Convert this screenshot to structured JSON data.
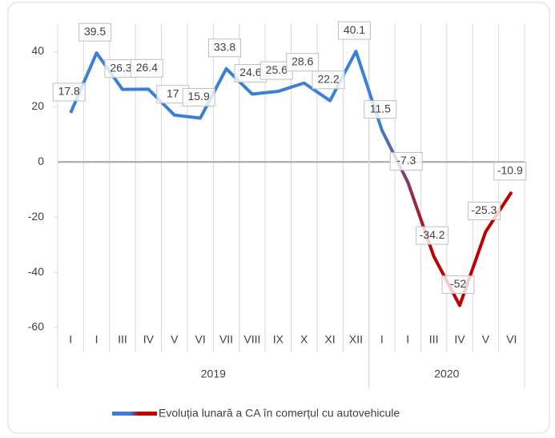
{
  "chart_data": {
    "type": "line",
    "categories": [
      "I",
      "I",
      "III",
      "IV",
      "V",
      "VI",
      "VII",
      "VIII",
      "IX",
      "X",
      "XI",
      "XII",
      "I",
      "I",
      "III",
      "IV",
      "V",
      "VI"
    ],
    "groups": [
      {
        "label": "2019",
        "span": 12
      },
      {
        "label": "2020",
        "span": 6
      }
    ],
    "series": [
      {
        "name": "Evoluția lunară a CA în comerțul cu autovehicule",
        "colors": [
          "#3b7fd6",
          "#c00000"
        ],
        "values": [
          17.8,
          39.5,
          26.3,
          26.4,
          17,
          15.9,
          33.8,
          24.6,
          25.6,
          28.6,
          22.2,
          40.1,
          11.5,
          -7.3,
          -34.2,
          -52,
          -25.3,
          -10.9
        ]
      }
    ],
    "ylim": [
      -60,
      50
    ],
    "yticks": [
      -60,
      -40,
      -20,
      0,
      20,
      40
    ],
    "legend": "bottom"
  }
}
